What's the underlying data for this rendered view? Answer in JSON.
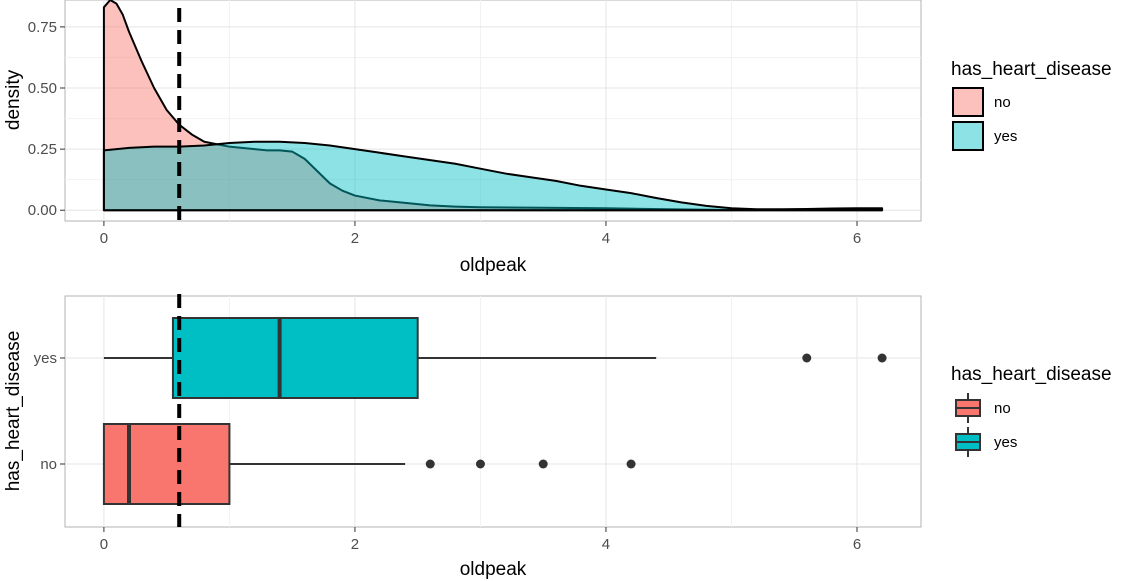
{
  "chart_data": [
    {
      "type": "area",
      "subtype": "density",
      "xlabel": "oldpeak",
      "ylabel": "density",
      "xlim": [
        -0.31,
        6.51
      ],
      "ylim": [
        -0.044,
        0.86
      ],
      "x_ticks": [
        0,
        2,
        4,
        6
      ],
      "y_ticks": [
        0.0,
        0.25,
        0.5,
        0.75
      ],
      "y_tick_labels": [
        "0.00",
        "0.25",
        "0.50",
        "0.75"
      ],
      "grid": true,
      "reference_line": {
        "x": 0.6,
        "style": "dashed"
      },
      "legend": {
        "title": "has_heart_disease",
        "placement": "right",
        "entries": [
          {
            "label": "no",
            "color": "#F8766D"
          },
          {
            "label": "yes",
            "color": "#00BFC4"
          }
        ]
      },
      "series": [
        {
          "name": "no",
          "color": "#F8766D",
          "points": [
            [
              0,
              0.83
            ],
            [
              0.05,
              0.86
            ],
            [
              0.1,
              0.845
            ],
            [
              0.15,
              0.8
            ],
            [
              0.2,
              0.73
            ],
            [
              0.3,
              0.61
            ],
            [
              0.4,
              0.5
            ],
            [
              0.5,
              0.41
            ],
            [
              0.6,
              0.35
            ],
            [
              0.7,
              0.31
            ],
            [
              0.8,
              0.28
            ],
            [
              0.9,
              0.27
            ],
            [
              1.0,
              0.26
            ],
            [
              1.1,
              0.255
            ],
            [
              1.2,
              0.25
            ],
            [
              1.3,
              0.245
            ],
            [
              1.4,
              0.245
            ],
            [
              1.5,
              0.24
            ],
            [
              1.6,
              0.21
            ],
            [
              1.7,
              0.16
            ],
            [
              1.8,
              0.11
            ],
            [
              1.9,
              0.08
            ],
            [
              2.0,
              0.06
            ],
            [
              2.2,
              0.04
            ],
            [
              2.4,
              0.03
            ],
            [
              2.6,
              0.02
            ],
            [
              2.8,
              0.015
            ],
            [
              3.0,
              0.012
            ],
            [
              3.5,
              0.01
            ],
            [
              4.0,
              0.008
            ],
            [
              4.5,
              0.004
            ],
            [
              5.0,
              0.001
            ],
            [
              5.5,
              0.0
            ],
            [
              6.2,
              0.0
            ]
          ]
        },
        {
          "name": "yes",
          "color": "#00BFC4",
          "points": [
            [
              0,
              0.245
            ],
            [
              0.2,
              0.255
            ],
            [
              0.4,
              0.26
            ],
            [
              0.6,
              0.26
            ],
            [
              0.8,
              0.265
            ],
            [
              1.0,
              0.275
            ],
            [
              1.2,
              0.28
            ],
            [
              1.4,
              0.28
            ],
            [
              1.6,
              0.275
            ],
            [
              1.8,
              0.265
            ],
            [
              2.0,
              0.25
            ],
            [
              2.2,
              0.235
            ],
            [
              2.4,
              0.22
            ],
            [
              2.6,
              0.205
            ],
            [
              2.8,
              0.19
            ],
            [
              3.0,
              0.17
            ],
            [
              3.2,
              0.15
            ],
            [
              3.4,
              0.135
            ],
            [
              3.6,
              0.12
            ],
            [
              3.8,
              0.1
            ],
            [
              4.0,
              0.085
            ],
            [
              4.2,
              0.07
            ],
            [
              4.4,
              0.05
            ],
            [
              4.6,
              0.032
            ],
            [
              4.8,
              0.018
            ],
            [
              5.0,
              0.008
            ],
            [
              5.2,
              0.004
            ],
            [
              5.4,
              0.004
            ],
            [
              5.6,
              0.005
            ],
            [
              5.8,
              0.007
            ],
            [
              6.0,
              0.008
            ],
            [
              6.2,
              0.008
            ]
          ]
        }
      ]
    },
    {
      "type": "boxplot",
      "orientation": "horizontal",
      "xlabel": "oldpeak",
      "ylabel": "has_heart_disease",
      "xlim": [
        -0.31,
        6.51
      ],
      "x_ticks": [
        0,
        2,
        4,
        6
      ],
      "categories": [
        "yes",
        "no"
      ],
      "grid": true,
      "reference_line": {
        "x": 0.6,
        "style": "dashed"
      },
      "legend": {
        "title": "has_heart_disease",
        "placement": "right",
        "entries": [
          {
            "label": "no",
            "color": "#F8766D"
          },
          {
            "label": "yes",
            "color": "#00BFC4"
          }
        ]
      },
      "boxes": [
        {
          "category": "yes",
          "color": "#00BFC4",
          "whisker_low": 0.0,
          "q1": 0.55,
          "median": 1.4,
          "q3": 2.5,
          "whisker_high": 4.4,
          "outliers": [
            5.6,
            6.2
          ]
        },
        {
          "category": "no",
          "color": "#F8766D",
          "whisker_low": 0.0,
          "q1": 0.0,
          "median": 0.2,
          "q3": 1.0,
          "whisker_high": 2.4,
          "outliers": [
            2.6,
            3.0,
            3.5,
            4.2
          ]
        }
      ]
    }
  ]
}
